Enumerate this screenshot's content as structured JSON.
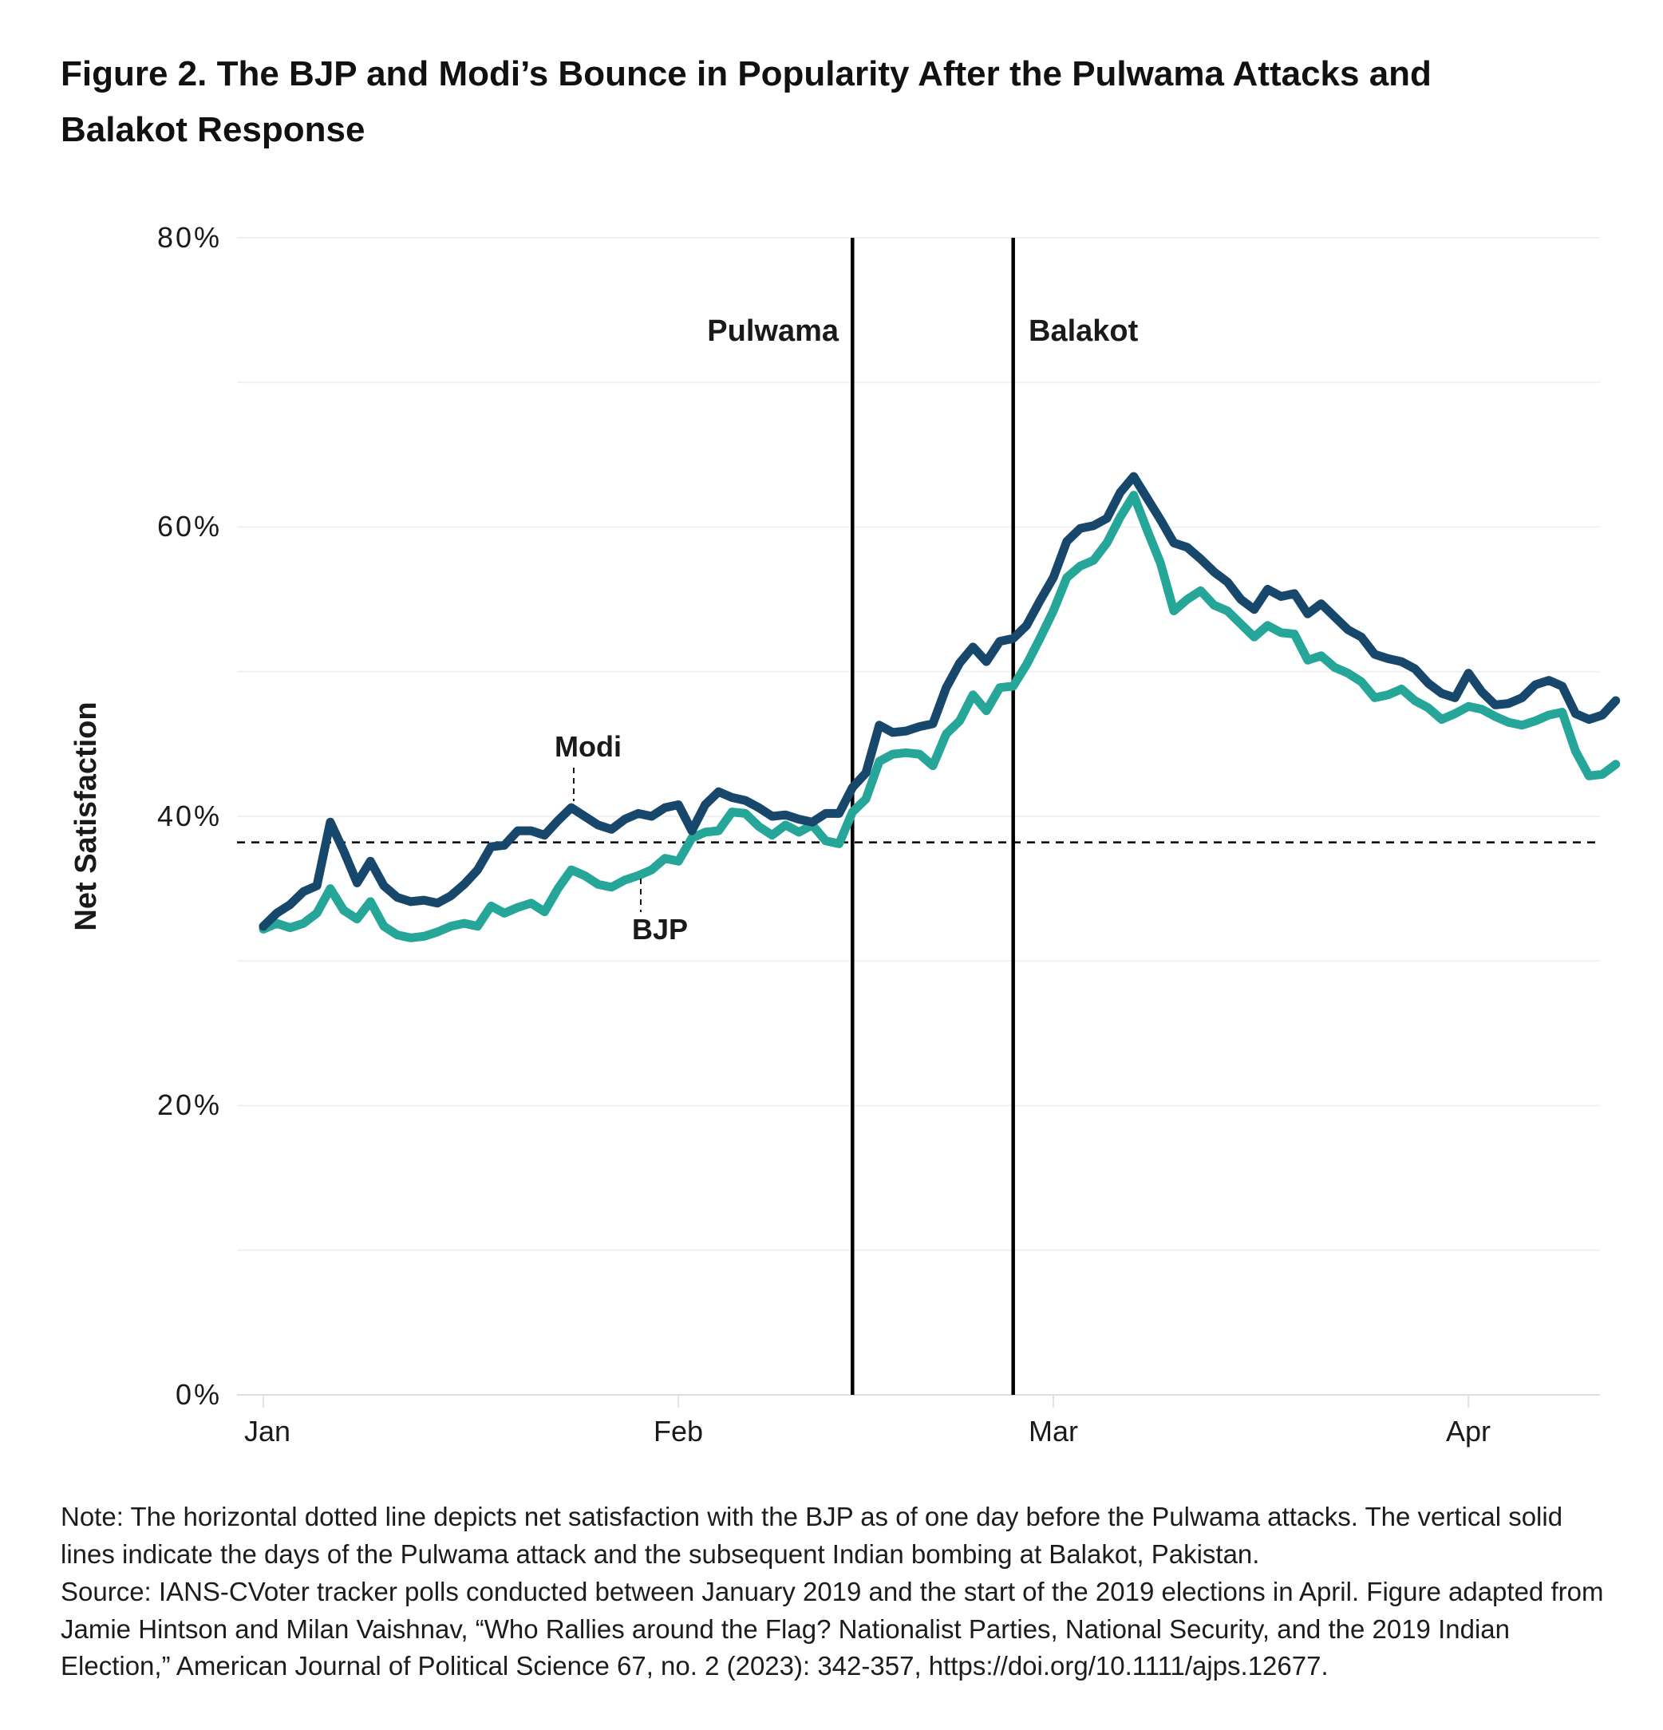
{
  "figure_title": "Figure 2. The BJP and Modi’s Bounce in Popularity After the Pulwama Attacks and Balakot Response",
  "notes": {
    "note": "Note: The horizontal dotted line depicts net satisfaction with the BJP as of one day before the Pulwama attacks. The vertical solid lines indicate the days of the Pulwama attack and the subsequent Indian bombing at Balakot, Pakistan.",
    "source": "Source: IANS-CVoter tracker polls conducted between January 2019 and the start of the 2019 elections in April. Figure adapted from Jamie Hintson and Milan Vaishnav, “Who Rallies around the Flag? Nationalist Parties, National Security, and the 2019 Indian Election,” American Journal of Political Science 67, no. 2 (2023): 342-357, https://doi.org/10.1111/ajps.12677."
  },
  "colors": {
    "modi_line": "#17486b",
    "bjp_line": "#26a699",
    "gridline": "#f0f0f0",
    "axis_line": "#dedede",
    "tick_mark": "#e2e2e2",
    "event_line": "#000000",
    "reference_line": "#000000",
    "text": "#1a1a1a"
  },
  "chart_data": {
    "type": "line",
    "ylabel": "Net Satisfaction",
    "x_start_date": "2019-01-01",
    "x_sampling": "daily",
    "x_tick_labels": [
      "Jan",
      "Feb",
      "Mar",
      "Apr"
    ],
    "x_tick_days": [
      0,
      31,
      59,
      90
    ],
    "ylim": [
      0,
      80
    ],
    "y_tick_values": [
      0,
      20,
      40,
      60,
      80
    ],
    "y_tick_labels": [
      "0%",
      "20%",
      "40%",
      "60%",
      "80%"
    ],
    "gridline_step": 10,
    "grid": true,
    "legend": "inline series labels with dashed leader lines",
    "reference_line": {
      "value": 38.2,
      "style": "dotted-horizontal",
      "description": "BJP net satisfaction one day before the Pulwama attacks"
    },
    "events": [
      {
        "label": "Pulwama",
        "day": 44,
        "date": "2019-02-14"
      },
      {
        "label": "Balakot",
        "day": 56,
        "date": "2019-02-26"
      }
    ],
    "series": [
      {
        "name": "Modi",
        "color": "#17486b",
        "values": [
          32.4,
          33.3,
          33.9,
          34.8,
          35.2,
          39.6,
          37.6,
          35.4,
          36.9,
          35.2,
          34.4,
          34.1,
          34.2,
          34.0,
          34.5,
          35.3,
          36.3,
          37.9,
          38.0,
          39.0,
          39.0,
          38.7,
          39.7,
          40.6,
          40.0,
          39.4,
          39.1,
          39.8,
          40.2,
          40.0,
          40.6,
          40.8,
          39.0,
          40.8,
          41.7,
          41.3,
          41.1,
          40.6,
          40.0,
          40.1,
          39.8,
          39.6,
          40.2,
          40.2,
          42.0,
          43.0,
          46.3,
          45.8,
          45.9,
          46.2,
          46.4,
          48.9,
          50.6,
          51.7,
          50.7,
          52.1,
          52.3,
          53.2,
          54.9,
          56.5,
          59.0,
          59.9,
          60.1,
          60.6,
          62.4,
          63.5,
          62.0,
          60.5,
          58.9,
          58.6,
          57.8,
          56.9,
          56.2,
          55.0,
          54.3,
          55.7,
          55.2,
          55.4,
          54.0,
          54.7,
          53.8,
          52.9,
          52.4,
          51.2,
          50.9,
          50.7,
          50.2,
          49.2,
          48.5,
          48.2,
          49.9,
          48.6,
          47.7,
          47.8,
          48.2,
          49.1,
          49.4,
          49.0,
          47.1,
          46.7,
          47.0,
          48.0
        ]
      },
      {
        "name": "BJP",
        "color": "#26a699",
        "values": [
          32.2,
          32.6,
          32.3,
          32.6,
          33.3,
          35.0,
          33.5,
          32.9,
          34.1,
          32.4,
          31.8,
          31.6,
          31.7,
          32.0,
          32.4,
          32.6,
          32.4,
          33.8,
          33.3,
          33.7,
          34.0,
          33.4,
          35.0,
          36.3,
          35.9,
          35.3,
          35.1,
          35.6,
          35.9,
          36.3,
          37.1,
          36.9,
          38.5,
          38.9,
          39.0,
          40.3,
          40.2,
          39.3,
          38.7,
          39.4,
          38.9,
          39.4,
          38.3,
          38.1,
          40.3,
          41.2,
          43.8,
          44.3,
          44.4,
          44.3,
          43.5,
          45.7,
          46.6,
          48.4,
          47.3,
          48.9,
          49.0,
          50.5,
          52.3,
          54.2,
          56.5,
          57.3,
          57.7,
          58.9,
          60.7,
          62.2,
          59.8,
          57.5,
          54.2,
          55.0,
          55.6,
          54.6,
          54.2,
          53.3,
          52.4,
          53.2,
          52.7,
          52.6,
          50.8,
          51.1,
          50.3,
          49.9,
          49.3,
          48.2,
          48.4,
          48.8,
          48.0,
          47.5,
          46.7,
          47.1,
          47.6,
          47.4,
          46.9,
          46.5,
          46.3,
          46.6,
          47.0,
          47.2,
          44.5,
          42.8,
          42.9,
          43.6
        ]
      }
    ]
  }
}
